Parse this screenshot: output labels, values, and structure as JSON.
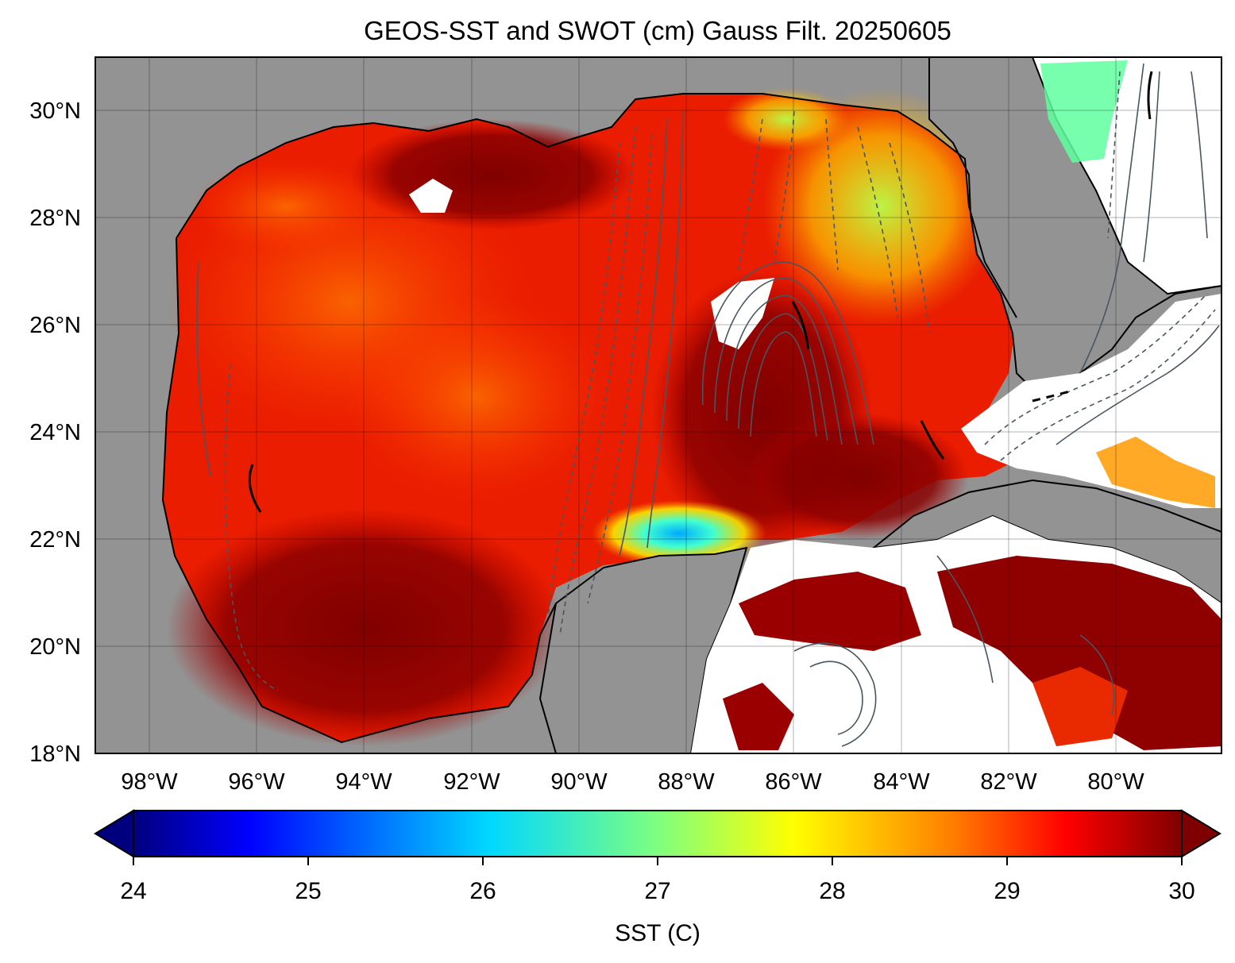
{
  "title": "GEOS-SST  and SWOT (cm) Gauss Filt. 20250605",
  "map": {
    "lon_range": [
      -99,
      -78.5
    ],
    "lat_range": [
      18,
      31
    ],
    "lat_ticks": [
      {
        "value": 18,
        "label": "18°N"
      },
      {
        "value": 20,
        "label": "20°N"
      },
      {
        "value": 22,
        "label": "22°N"
      },
      {
        "value": 24,
        "label": "24°N"
      },
      {
        "value": 26,
        "label": "26°N"
      },
      {
        "value": 28,
        "label": "28°N"
      },
      {
        "value": 30,
        "label": "30°N"
      }
    ],
    "lon_ticks": [
      {
        "value": -98,
        "label": "98°W"
      },
      {
        "value": -96,
        "label": "96°W"
      },
      {
        "value": -94,
        "label": "94°W"
      },
      {
        "value": -92,
        "label": "92°W"
      },
      {
        "value": -90,
        "label": "90°W"
      },
      {
        "value": -88,
        "label": "88°W"
      },
      {
        "value": -86,
        "label": "86°W"
      },
      {
        "value": -84,
        "label": "84°W"
      },
      {
        "value": -82,
        "label": "82°W"
      },
      {
        "value": -80,
        "label": "80°W"
      }
    ],
    "land_color": "#939393",
    "no_data_color": "#ffffff",
    "contour_color": "#4a5560",
    "gridlines": true
  },
  "colorbar": {
    "label": "SST (C)",
    "min": 24,
    "max": 30,
    "extend": "both",
    "ticks": [
      "24",
      "25",
      "26",
      "27",
      "28",
      "29",
      "30"
    ],
    "colormap": "jet",
    "colors": [
      "#00007f",
      "#0000ff",
      "#007fff",
      "#00ffff",
      "#7fff7f",
      "#ffff00",
      "#ff7f00",
      "#ff0000",
      "#7f0000"
    ]
  }
}
